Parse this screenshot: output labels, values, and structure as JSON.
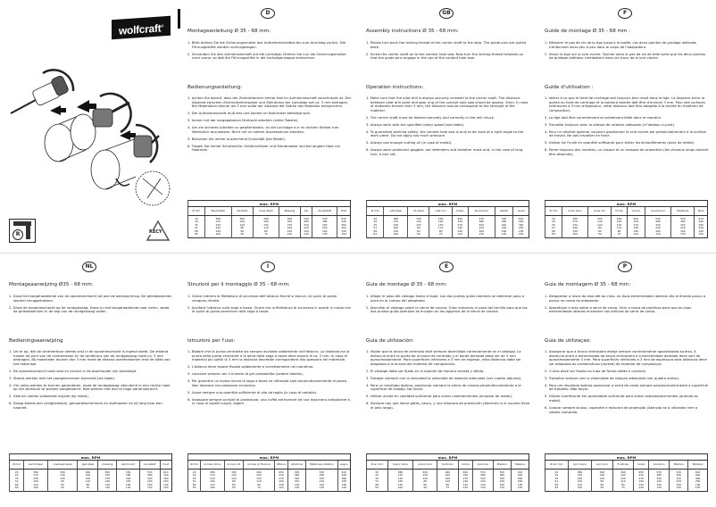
{
  "brand": {
    "logo_text": "wolfcraft"
  },
  "illustration": {
    "icons": [
      "hole-saw-assembly-illustration",
      "drill-rotation-right-icon",
      "recycle-icon"
    ],
    "drill_label": "R",
    "recycle_label": "RECY"
  },
  "table_title": "max. RPM",
  "table_rows": [
    [
      "20",
      "380",
      "300",
      "260",
      "650",
      "530",
      "530",
      "610"
    ],
    [
      "29",
      "270",
      "140",
      "190",
      "330",
      "380",
      "380",
      "440"
    ],
    [
      "35",
      "230",
      "120",
      "150",
      "270",
      "320",
      "320",
      "360"
    ],
    [
      "51",
      "160",
      "80",
      "110",
      "190",
      "220",
      "220",
      "250"
    ],
    [
      "68",
      "120",
      "60",
      "80",
      "140",
      "160",
      "160",
      "190"
    ],
    [
      "83",
      "100",
      "50",
      "70",
      "120",
      "130",
      "130",
      "150"
    ]
  ],
  "panels": [
    {
      "badge": "D",
      "heading1": "Montageanleitung Ø 35 - 68 mm:",
      "assembly": [
        "1. Bitte drehen Sie die Sicherungsmutter des Aufnahmeschaftes bis zum Anschlag zurück. Die Führungsstifte werden zurückgezogen.",
        "2. Schrauben Sie den Aufnahmeschaft auf die Lochsäge. Drehen Sie nun die Sicherungsmutter nach vorne, so daß die Führungsstifte in die Lochsägenkappe eintauchen."
      ],
      "heading2": "Bedienungsanleitung:",
      "operation": [
        "1. Achten Sie darauf, dass der Zentrierbohrer immer fest im Aufnahmeschaft verschraubt ist. Der Abstand zwischen Zentrierbohrerspitze und Zahnkranz der Lochsäge soll ca. 3 mm betragen. Bei Materialien dünner als 3 mm sollte der Abstand der Stärke des Materials entsprechen.",
        "2. Der Aufnahmeschaft muß fest und korrekt im Bohrfutter befestigt sein.",
        "3. Immer mit der vorgegebenen Drehzahl arbeiten (siehe Tabelle).",
        "4. Um ein sicheres Arbeiten zu gewährleisten, ist die Lochsäge nur im rechten Winkel zum Werkstück anzusetzen. Nicht mit zu hohem Anpressdruck arbeiten.",
        "5. Benutzen Sie immer ausreichend Schneidöl (bei Metall).",
        "6. Tragen Sie immer Schutzbrille, Gehörschützer und Staubmaske und bei langem Haar ein Haarnetz."
      ],
      "table_headers": [
        "Ø mm",
        "Weichstahl",
        "VA-Stahl",
        "Guss Stahl",
        "Messing",
        "Alu",
        "Kunststoff",
        "Holz"
      ]
    },
    {
      "badge": "GB",
      "heading1": "Assembly instructions Ø 35 - 68 mm:",
      "assembly": [
        "1. Please turn back the locking thread of the carrier shaft to the stop. The guide pins are pulled back.",
        "2. Screw the carrier shaft on to the conduit hole saw. Now turn the locking thread forwards so that the guide pins engage in the cap of the conduit hole saw."
      ],
      "heading2": "Operation instructions:",
      "operation": [
        "1. Make sure that the pilot drill is always securely screwed to the carrier shaft. The distance between pilot drill point and gear ring of the conduit hole saw shoud be approx. 3mm. In case of materials thinner than 3 mm, the distance should correspond to the strenght of the material.",
        "2. The carrier shaft must be fastend securely and correctly in the drill chuck.",
        "3. Always work with the specified rotary speed (see table).",
        "4. To guarantee working safety, the conduit hole saw is only to be used at a right angle to the work piece. Do not apply too much pressure.",
        "5. Always use enough cutting oil (in case of metal).",
        "6. Always wear protective goggles, ear defenders and breather mask and, in the case of long hair, a hair net."
      ],
      "table_headers": [
        "Ø mm",
        "soft steel",
        "VA steel",
        "cast iron",
        "brass",
        "aluminium",
        "plastic",
        "wood"
      ]
    },
    {
      "badge": "F",
      "heading1": "Guide de montage Ø 35 - 68 mm :",
      "assembly": [
        "1. Désserer le pas de vis de la tige jusqu'à la butée. Les deux pointes de guidage latérales s'enfoncent alors peu à peu dans le corps de l'adaptateur.",
        "2. Visser la tige sur la scie cloche. Tourner alors le pas de vis de telle sorte que les deux pointes de guidage latérales s'emboîtent dans les trous de la scie cloche."
      ],
      "heading2": "Guide d'utilisation :",
      "operation": [
        "1. Veiller à ce que le foret de centrage soit toujours bien vissé dans la tige. La distance entre la pointe du foret de centrage et la bordure dentée doit être d'environ 3 mm. Pour des surfaces inférieures à 3 mm d'épaisseur, cette distance doit être adaptée à la dureté du matériau de composition.",
        "2. La tige doit être correctement et solidement fixée dans le mandrin.",
        "3. Travailler toujours avec la vitesse de rotation adéquate (cf tableau ci-joint).",
        "4. Pour un résultat optimal, toujours positionner la scie cloche per pendiculairement à la surface de travail. Ne pas travailler en force.",
        "5. Utiliser de l'huile en quantité suffisante pour éviter les échauffements (avec de métal).",
        "6. Porter toujours des lunettes, un casque et un masque de protection (les cheveux longs doivent être attachés)."
      ],
      "table_headers": [
        "Ø mm",
        "Acier doux",
        "Acier dur",
        "Fonte",
        "Cuivre",
        "Aluminium",
        "Plastique",
        "Bois"
      ]
    },
    {
      "badge": "NL",
      "heading1": "Montageaanwijzing Ø35 - 68 mm:",
      "assembly": [
        "1. Draai het borgdraadeinde van de opnameschacht tot aan de aanslag terug. De geleidepennen worden teruggetrokken.",
        "2. Draai de opnameschacht op de rondgatzaag. Draai nu het borgdraadeinde naar voren, zodat de geleidepennen in de kap van de rondgatzaag vallen."
      ],
      "heading2": "Bedieningsaanwijzing",
      "operation": [
        "1. Let er op, dat de centreerboor steeds vast in de opnameschacht is ingeschroefd. De afstand tussen de punt van de centreerboor en de tandkrans van de rondgatzaag moet ca. 3 mm bedragen. Bij materialen dunner dan 3 mm moet de afstand overeenkomen met de dikte van het materiaal.",
        "2. De opnameschacht moet vast en correct in de boorhouder zijn bevestigd.",
        "3. Steeds werken met het voorgeschreven toerental (zie tabel).",
        "4. Om veilig werken te kunnen garanderen, moet de rondgatzaag uitsluitend in een rechte hoek op het werkstuk te worden aangebracht. Niet werken met een te hoge aandrukkracht.",
        "5. Gebruik steeds voldoende snijolie (bij metal).",
        "6. Draag steeds een veiligheidsbril, gehoorbeschermers en stofmasker en bij lang haar een haarnet."
      ],
      "table_headers": [
        "Ø mm",
        "zacht staal",
        "roestvast staal",
        "giet staal",
        "messing",
        "aluminium",
        "kunststof",
        "hout"
      ]
    },
    {
      "badge": "I",
      "heading1": "Struzioni per il montaggio Ø 35 - 68 mm:",
      "assembly": [
        "1. Girare indietro la filettatura di sicurezza dell'attacco finché si blocca. Le spine di guida vengono ritirate.",
        "2. Avvitare l'attacco sulla sega a tazza. Girare ora la filettatura di sicurezza in avanti in modo che le spine di guida penetrino nella sega a tazza."
      ],
      "heading2": "Istruzioni per l'uso:",
      "operation": [
        "1. Badare che la punta centrante sia sempre avvitata saldamente nell'attacco. La distanza tra la punta della punta centrante e la lama della sega a tazza deve essere di ca. 3 mm. In caso di materiali più sottili di 3 mm la distanza dovrebbe corrispondere allo spessore del materiale.",
        "2. L'attacco deve essere fissato saldamente e correttamente nel mandrino.",
        "3. Lavorare sempre con il numero di giri prestabilito (vedere tabella).",
        "4. Per garantire un lavoro sicuro la sega a tazza va utilizzata solo perpendicolarmente al pezzo. Non lavorare con pressione eccessiva.",
        "5. Usare sempre una quantità sufficiente di olio da taglio (in caso di metallo).",
        "6. Indossare sempre occhiali di protezione, una cuffia antirumore ed una maschera antipolvere e, in caso di capelli lunghi, legarli."
      ],
      "table_headers": [
        "Ø mm",
        "Acciaio dolce",
        "Acciaio V4",
        "Acciaio di Fusione",
        "Ottone",
        "Alluminio",
        "Materiale sintetico",
        "Legno"
      ]
    },
    {
      "badge": "E",
      "heading1": "Guia de montage Ø 35 - 68 mm:",
      "assembly": [
        "1. Aflojar el paso del vástago hasta el tope. Las dos puntas guías laterales se adentran poco a poco en el cuerpo del adaptador.",
        "2. Atornillar el vástago sobre la sierra de corona. Girar entonces el paso del tornillo para que las dos puntas guías laterales se encajen en los agujeros de la sierra de corona."
      ],
      "heading2": "Guia de utilización:",
      "operation": [
        "1. Vigilar que la broca de centrado esté siempre atornillada correctamente en el vástago. La distancia entre la punta de la broca de centrado y el borde dentado debe ser de 3 mm aproximadamente. Para superficies inferiores a 3 mm de espesor, esta distancia debe ser adaptada a la dureza del material de composición.",
        "2. El vástago debe ser fijado en el mandril de manera correta y sólida.",
        "3. Trabajar siempre con la velocidad la velocidad de rotación adecuada (ver cuadro adjunto).",
        "4. Para un resultado óptimo, posicionar siempre la sierra de corona perpendicularmente a la superficie de trabajo. No forzar.",
        "5. Utilizar aceite en cantidad suficiente para evitar calentamientos (emplear de metal).",
        "6. Siempre hay que llevar gafas, casco, y una máscara de protección (Atención si el usuario tiene el pelo largo)."
      ],
      "table_headers": [
        "Ø en mm",
        "Acero dulce",
        "Acero duro",
        "fundición",
        "Cobre",
        "Aluminio",
        "Plástico",
        "Madera"
      ]
    },
    {
      "badge": "P",
      "heading1": "Guia de montagem Ø 35 - 68 mm:",
      "assembly": [
        "1. Desapertar a rosca do eixo até ao cimo. As duas extremidades laterais vão entrando pouco a pouco no corpo do adaptador.",
        "2. Aparafusar o eixo sobre a serra de coroa. Virar a rosca do parafuso para que as duas extremidades laterais encaixem nos orifícios da serra de coroa."
      ],
      "heading2": "Guia de utilizaçao:",
      "operation": [
        "1. Assegurar que a broca centradora esteja sempre correctamente aparafusada ao eixo. A distancia entre a extremidade da broca centradora e a extremidade dentada deve sert de aproximadamente 3 mm. Para superficies inferiores a 3 mm de espessura esta distancia deve ser adaptada às caraterísticas (dureza) do material de composiçao",
        "2. O eixo deve ser fixado no tubo de forma sólida e correcta.",
        "3. Trabalhar sempre com a velocidade de rotaçao adequada (ver quadro anexo).",
        "4. Para um resultado óptimo posicionar a serra de coroa sempre perpendicularmente à superfície de trabalho. Não forçar.",
        "5. Utilizar lubrificante em quantidade suficiente para evitar sobreaquecimentos (quando as metal).",
        "6. Colocar sempre óculos, capacete e máscara de protecção (Atençâo se o utilizador tem o cabelo comprido."
      ],
      "table_headers": [
        "Ø em mm",
        "Aço macio",
        "Aço duro",
        "Fundiçao",
        "Cobre",
        "Alumínio",
        "Plástico",
        "Madeira"
      ]
    }
  ]
}
